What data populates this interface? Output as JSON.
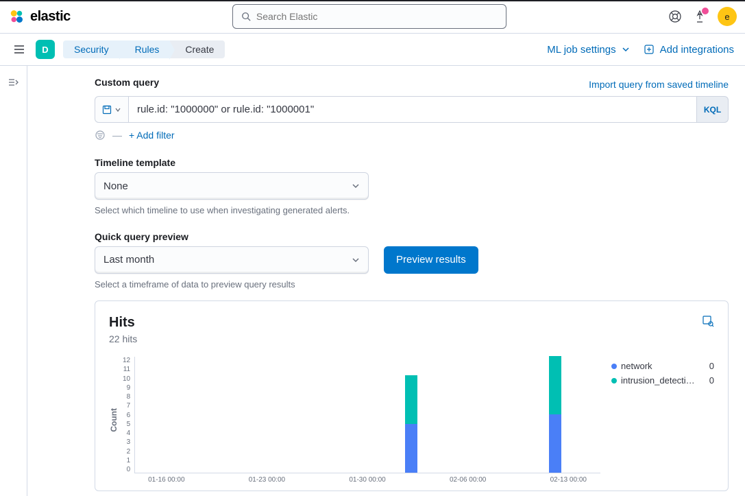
{
  "header": {
    "brand": "elastic",
    "search_placeholder": "Search Elastic",
    "avatar_initial": "e"
  },
  "breadcrumb": {
    "space_letter": "D",
    "items": [
      "Security",
      "Rules",
      "Create"
    ],
    "ml_label": "ML job settings",
    "add_integrations": "Add integrations"
  },
  "form": {
    "custom_query": {
      "label": "Custom query",
      "import_link": "Import query from saved timeline",
      "value": "rule.id: \"1000000\" or rule.id: \"1000001\"",
      "lang": "KQL",
      "add_filter": "+ Add filter"
    },
    "timeline": {
      "label": "Timeline template",
      "value": "None",
      "help": "Select which timeline to use when investigating generated alerts."
    },
    "preview": {
      "label": "Quick query preview",
      "value": "Last month",
      "button": "Preview results",
      "help": "Select a timeframe of data to preview query results"
    }
  },
  "chart": {
    "title": "Hits",
    "subtitle": "22 hits",
    "y_axis_label": "Count",
    "y_ticks": [
      "12",
      "11",
      "10",
      "9",
      "8",
      "7",
      "6",
      "5",
      "4",
      "3",
      "2",
      "1",
      "0"
    ],
    "ymax": 12,
    "x_ticks": [
      "01-16 00:00",
      "01-23 00:00",
      "01-30 00:00",
      "02-06 00:00",
      "02-13 00:00"
    ],
    "bars": [
      {
        "x_pct": 58,
        "segments": [
          {
            "color": "#00bfb3",
            "value": 5
          },
          {
            "color": "#4a7ff7",
            "value": 5
          }
        ]
      },
      {
        "x_pct": 89,
        "segments": [
          {
            "color": "#00bfb3",
            "value": 6
          },
          {
            "color": "#4a7ff7",
            "value": 6
          }
        ]
      }
    ],
    "legend": [
      {
        "color": "#4a7ff7",
        "label": "network",
        "value": "0"
      },
      {
        "color": "#00bfb3",
        "label": "intrusion_detecti…",
        "value": "0"
      }
    ]
  }
}
